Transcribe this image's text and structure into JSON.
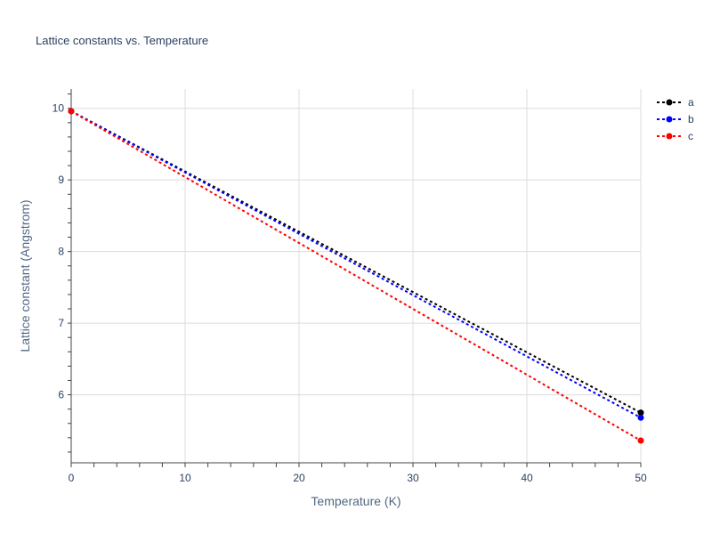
{
  "chart_data": {
    "type": "line",
    "title": "Lattice constants vs. Temperature",
    "xlabel": "Temperature (K)",
    "ylabel": "Lattice constant (Angstrom)",
    "xlim": [
      0,
      50
    ],
    "ylim": [
      5.05,
      10.27
    ],
    "x_ticks": [
      0,
      10,
      20,
      30,
      40,
      50
    ],
    "y_ticks": [
      6,
      7,
      8,
      9,
      10
    ],
    "grid": true,
    "legend_position": "top-right",
    "series": [
      {
        "name": "a",
        "color": "#000000",
        "x": [
          0,
          50
        ],
        "y": [
          9.96,
          5.75
        ]
      },
      {
        "name": "b",
        "color": "#0000ff",
        "x": [
          0,
          50
        ],
        "y": [
          9.96,
          5.68
        ]
      },
      {
        "name": "c",
        "color": "#ff0000",
        "x": [
          0,
          50
        ],
        "y": [
          9.96,
          5.36
        ]
      }
    ]
  }
}
